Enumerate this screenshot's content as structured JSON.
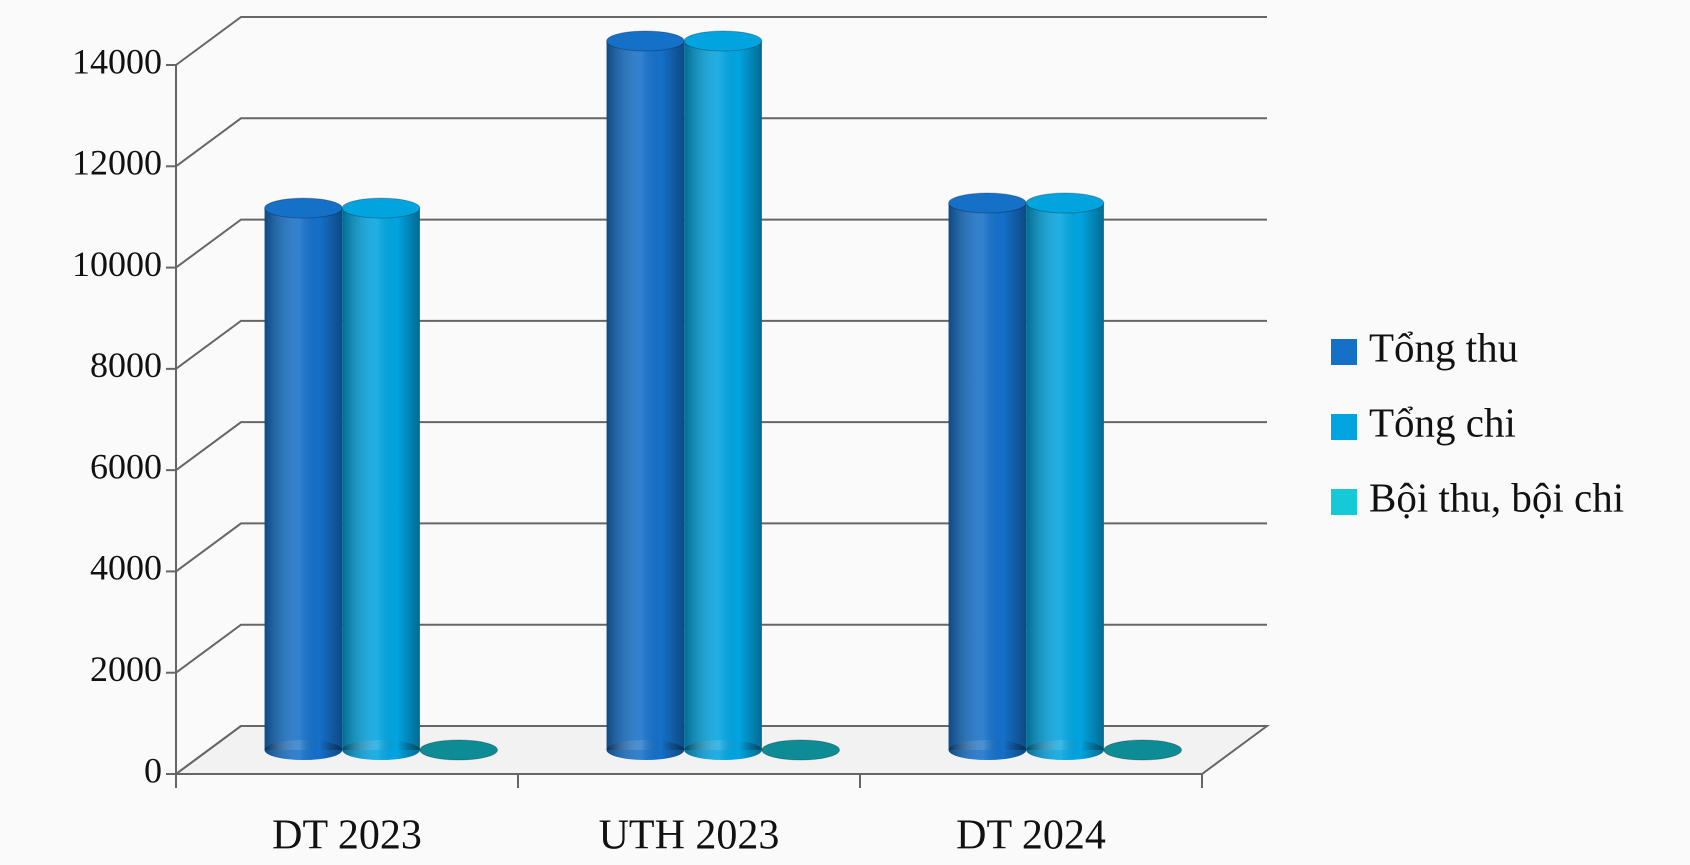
{
  "chart_data": {
    "type": "bar3d",
    "categories": [
      "DT 2023",
      "UTH 2023",
      "DT 2024"
    ],
    "series": [
      {
        "name": "Tổng thu",
        "color": "#1570c8",
        "values": [
          10700,
          14000,
          10800
        ]
      },
      {
        "name": "Tổng chi",
        "color": "#02a4e0",
        "values": [
          10700,
          14000,
          10800
        ]
      },
      {
        "name": "Bội thu, bội chi",
        "color": "#15c9d6",
        "values": [
          0,
          0,
          0
        ]
      }
    ],
    "ylim": [
      0,
      14000
    ],
    "yticks": [
      0,
      2000,
      4000,
      6000,
      8000,
      10000,
      12000,
      14000
    ],
    "grid": true,
    "legend": "right"
  }
}
